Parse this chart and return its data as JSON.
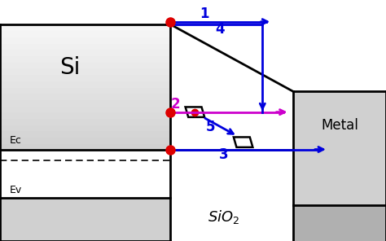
{
  "bg_color": "#ffffff",
  "si_label": "Si",
  "metal_label": "Metal",
  "sio2_label": "SiO₂",
  "ec_label": "Ec",
  "ev_label": "Ev",
  "arrow_color_blue": "#0000dd",
  "arrow_color_magenta": "#cc00cc",
  "dot_color": "#dd0000",
  "line_color": "#000000",
  "gray_light": "#d0d0d0",
  "gray_medium": "#b0b0b0",
  "label1": "1",
  "label2": "2",
  "label3": "3",
  "label4": "4",
  "label5": "5",
  "figw": 4.74,
  "figh": 2.96,
  "dpi": 100
}
